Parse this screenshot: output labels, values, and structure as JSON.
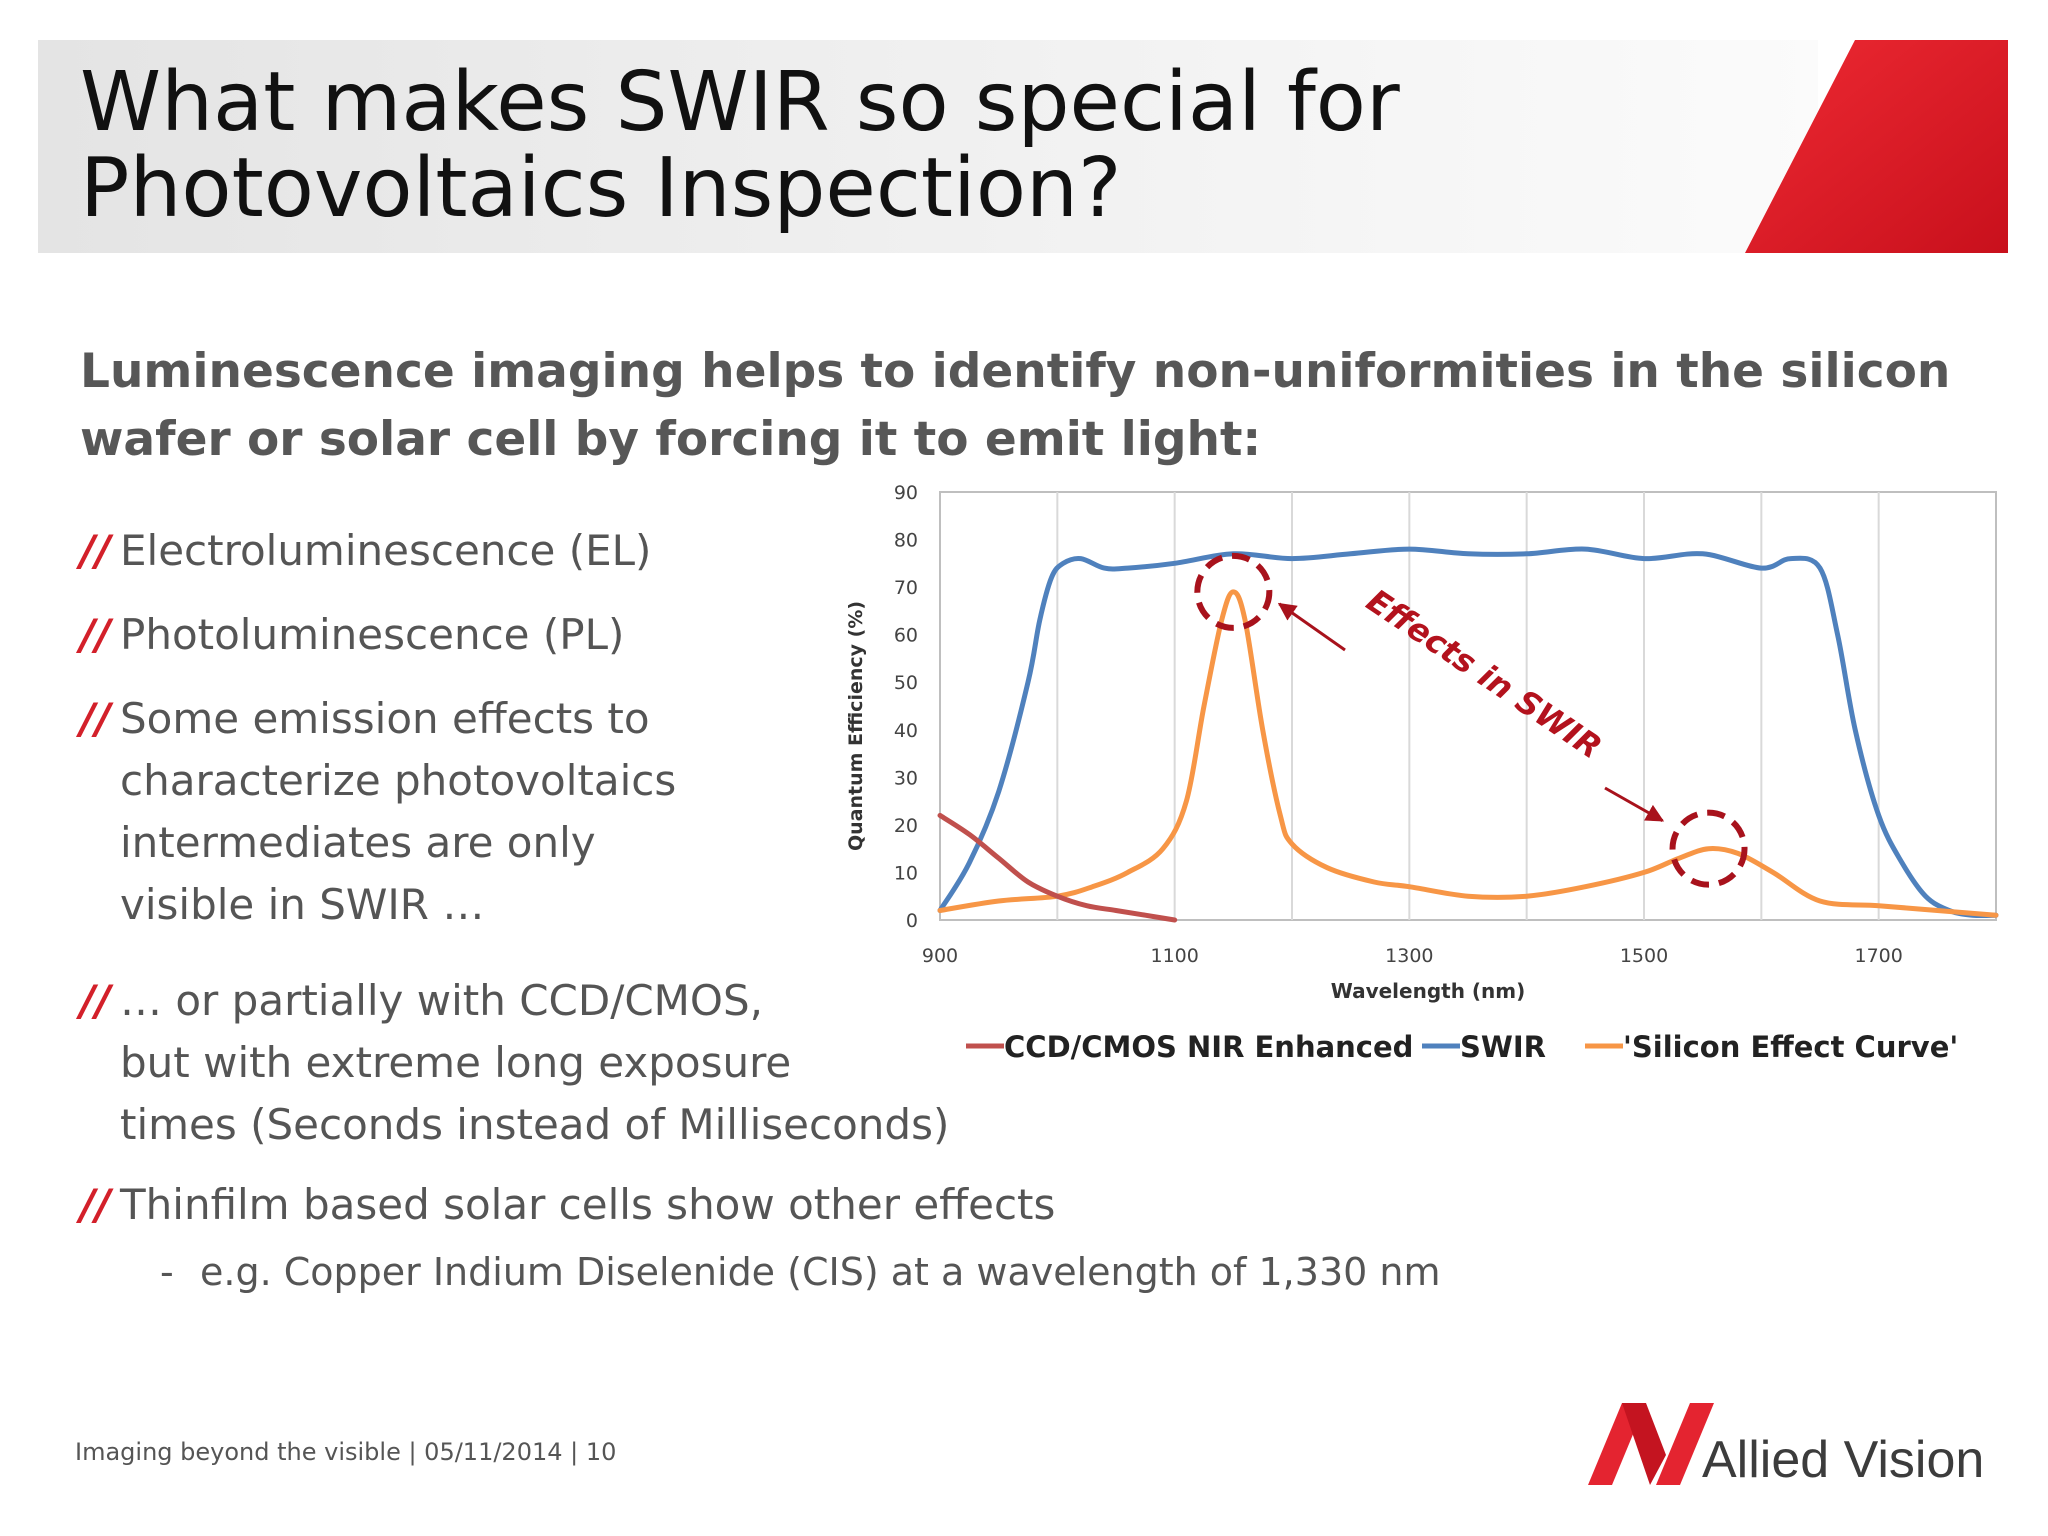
{
  "slide": {
    "title_line1": "What makes SWIR so special for",
    "title_line2": "Photovoltaics Inspection?",
    "subtitle": "Luminescence imaging helps to identify non-uniformities in the silicon wafer or solar cell by forcing it to emit light:",
    "bullet_mark": "//",
    "bullets": [
      {
        "lines": [
          "Electroluminescence (EL)"
        ]
      },
      {
        "lines": [
          "Photoluminescence (PL)"
        ]
      },
      {
        "lines": [
          "Some emission effects to",
          "characterize photovoltaics",
          "intermediates are only",
          "visible in SWIR …"
        ]
      },
      {
        "lines": [
          "… or partially with CCD/CMOS,",
          "but with extreme long exposure",
          "times (Seconds instead of Milliseconds)"
        ]
      },
      {
        "lines": [
          "Thinfilm based solar cells show other effects"
        ]
      }
    ],
    "sub_bullet": "e.g. Copper Indium Diselenide (CIS) at a wavelength of 1,330 nm",
    "sub_bullet_dash": "-",
    "footer": "Imaging beyond the visible | 05/11/2014 | 10",
    "logo_text": "Allied Vision",
    "colors": {
      "accent": "#d3202a",
      "text": "#555555",
      "title": "#111111"
    }
  },
  "chart_data": {
    "type": "line",
    "xlabel": "Wavelength (nm)",
    "ylabel": "Quantum Efficiency (%)",
    "xlim": [
      900,
      1800
    ],
    "ylim": [
      0,
      90
    ],
    "xticks": [
      900,
      1100,
      1300,
      1500,
      1700
    ],
    "yticks": [
      0,
      10,
      20,
      30,
      40,
      50,
      60,
      70,
      80,
      90
    ],
    "grid": "vertical",
    "legend_position": "bottom",
    "annotation": "Effects in SWIR",
    "highlight_circles": [
      {
        "x": 1150,
        "y": 69
      },
      {
        "x": 1555,
        "y": 15
      }
    ],
    "series": [
      {
        "name": "CCD/CMOS NIR Enhanced",
        "color": "#c0504d",
        "x": [
          900,
          925,
          950,
          975,
          1000,
          1025,
          1050,
          1075,
          1100
        ],
        "y": [
          22,
          18,
          13,
          8,
          5,
          3,
          2,
          1,
          0
        ]
      },
      {
        "name": "SWIR",
        "color": "#4f81bd",
        "x": [
          900,
          925,
          950,
          975,
          985,
          995,
          1005,
          1020,
          1040,
          1060,
          1100,
          1150,
          1200,
          1250,
          1300,
          1350,
          1400,
          1450,
          1500,
          1550,
          1600,
          1625,
          1650,
          1665,
          1680,
          1700,
          1720,
          1740,
          1760,
          1780,
          1800
        ],
        "y": [
          2,
          12,
          27,
          50,
          63,
          72,
          75,
          76,
          74,
          74,
          75,
          77,
          76,
          77,
          78,
          77,
          77,
          78,
          76,
          77,
          74,
          76,
          74,
          60,
          40,
          22,
          12,
          5,
          2,
          1,
          1
        ]
      },
      {
        "name": "'Silicon Effect Curve'",
        "color": "#f79646",
        "x": [
          900,
          950,
          1000,
          1030,
          1060,
          1090,
          1110,
          1125,
          1140,
          1150,
          1160,
          1175,
          1190,
          1200,
          1230,
          1270,
          1300,
          1350,
          1400,
          1450,
          1500,
          1530,
          1555,
          1580,
          1610,
          1650,
          1700,
          1750,
          1800
        ],
        "y": [
          2,
          4,
          5,
          7,
          10,
          15,
          25,
          45,
          63,
          69,
          63,
          40,
          22,
          16,
          11,
          8,
          7,
          5,
          5,
          7,
          10,
          13,
          15,
          14,
          10,
          4,
          3,
          2,
          1
        ]
      }
    ]
  }
}
